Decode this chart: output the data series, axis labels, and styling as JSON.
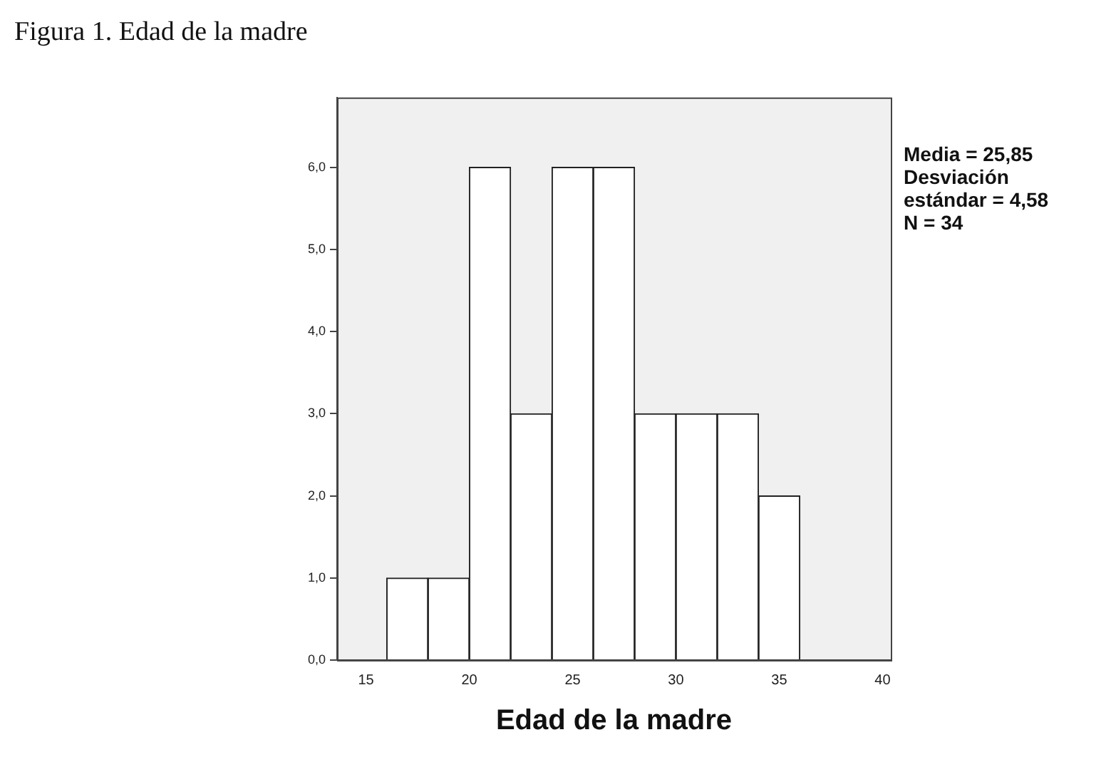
{
  "chart_data": {
    "type": "histogram",
    "title": "Figura 1. Edad de la madre",
    "xlabel": "Edad de la madre",
    "bins": [
      16,
      18,
      20,
      22,
      24,
      26,
      28,
      30,
      32,
      34,
      36
    ],
    "values": [
      1,
      1,
      6,
      3,
      6,
      6,
      3,
      3,
      3,
      2
    ],
    "color": "#ffffff",
    "xlim": [
      13.6,
      40.4
    ],
    "xticks": [
      15,
      20,
      25,
      30,
      35,
      40
    ],
    "ylim": [
      0,
      6.85
    ],
    "yticks": [
      {
        "value": 0,
        "label": "0,0"
      },
      {
        "value": 1,
        "label": "1,0"
      },
      {
        "value": 2,
        "label": "2,0"
      },
      {
        "value": 3,
        "label": "3,0"
      },
      {
        "value": 4,
        "label": "4,0"
      },
      {
        "value": 5,
        "label": "5,0"
      },
      {
        "value": 6,
        "label": "6,0"
      }
    ],
    "grid": false,
    "legend": false,
    "annotations": [
      "Media = 25,85",
      "Desviación estándar = 4,58",
      "N = 34"
    ]
  }
}
